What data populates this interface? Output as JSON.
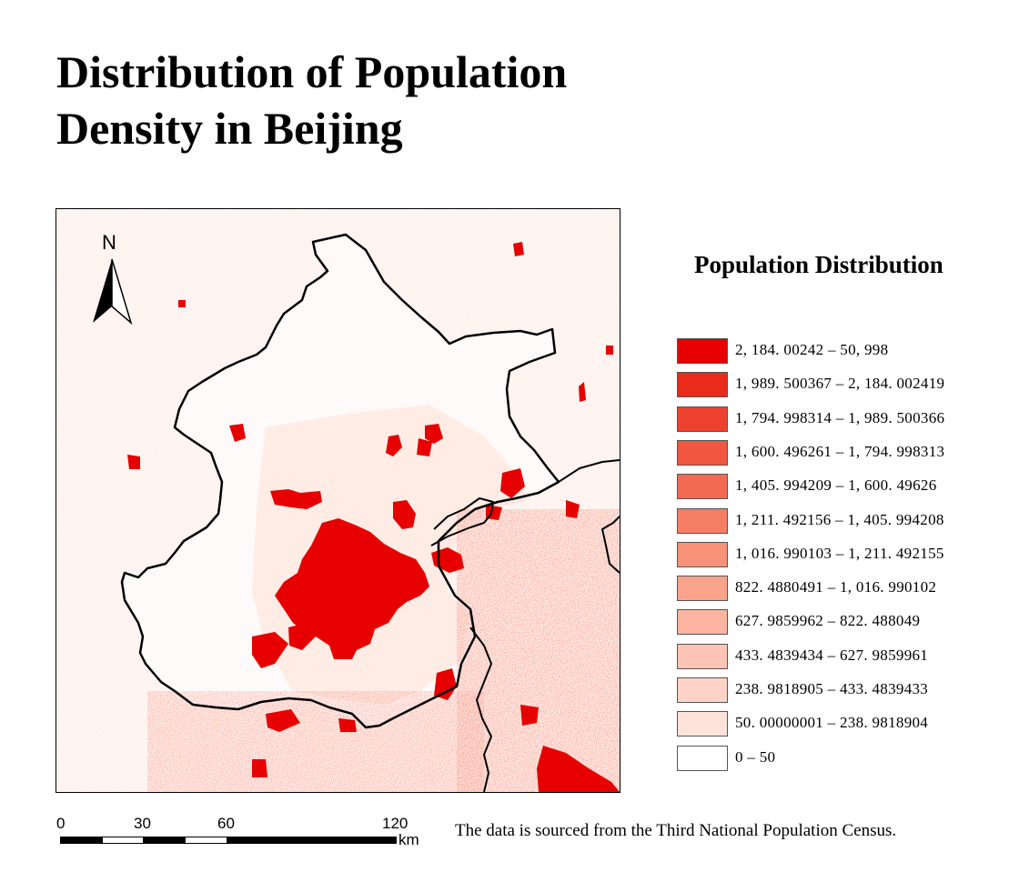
{
  "title": "Distribution of Population Density in Beijing",
  "map": {
    "north_label": "N",
    "icons": [
      "north-arrow-icon"
    ],
    "boundary_color": "#000000"
  },
  "legend": {
    "title": "Population Distribution",
    "classes": [
      {
        "label": "2, 184. 00242 – 50, 998",
        "color": "#e60000"
      },
      {
        "label": "1, 989. 500367 – 2, 184. 002419",
        "color": "#ea2a1a"
      },
      {
        "label": "1, 794. 998314 – 1, 989. 500366",
        "color": "#ee4230"
      },
      {
        "label": "1, 600. 496261 – 1, 794. 998313",
        "color": "#f15640"
      },
      {
        "label": "1, 405. 994209 – 1, 600. 49626",
        "color": "#f36a52"
      },
      {
        "label": "1, 211. 492156 – 1, 405. 994208",
        "color": "#f57e65"
      },
      {
        "label": "1, 016. 990103 – 1, 211. 492155",
        "color": "#f79178"
      },
      {
        "label": "822. 4880491 – 1, 016. 990102",
        "color": "#f9a38c"
      },
      {
        "label": "627. 9859962 – 822. 488049",
        "color": "#fbb4a0"
      },
      {
        "label": "433. 4839434 – 627. 9859961",
        "color": "#fcc4b4"
      },
      {
        "label": "238. 9818905 – 433. 4839433",
        "color": "#fdd3c8"
      },
      {
        "label": "50. 00000001 – 238. 9818904",
        "color": "#fee3da"
      },
      {
        "label": "0 – 50",
        "color": "#ffffff"
      }
    ]
  },
  "scale_bar": {
    "ticks": [
      "0",
      "30",
      "60",
      "120"
    ],
    "unit": "km"
  },
  "source": "The data is sourced from the Third National Population Census."
}
